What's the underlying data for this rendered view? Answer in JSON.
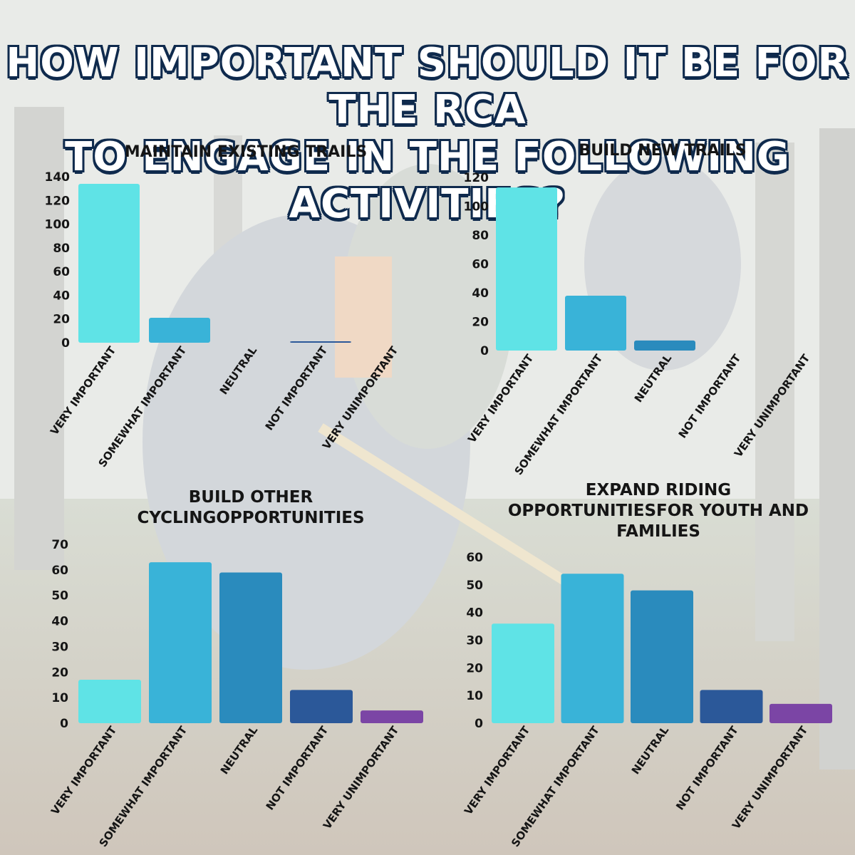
{
  "title_lines": [
    "HOW IMPORTANT SHOULD IT BE FOR THE RCA",
    "TO ENGAGE IN THE FOLLOWING ACTIVITIES?"
  ],
  "colors": {
    "very_important": "#5fe3e6",
    "somewhat_important": "#39b3d8",
    "neutral": "#2a8bbd",
    "not_important": "#2b5899",
    "very_unimportant": "#7b45a5"
  },
  "chart_data": [
    {
      "type": "bar",
      "title": [
        "MAINTAIN EXISTING TRAILS"
      ],
      "categories": [
        "VERY IMPORTANT",
        "SOMEWHAT IMPORTANT",
        "NEUTRAL",
        "NOT IMPORTANT",
        "VERY UNIMPORTANT"
      ],
      "values": [
        134,
        21,
        0,
        1,
        0
      ],
      "yticks": [
        0,
        20,
        40,
        60,
        80,
        100,
        120,
        140
      ],
      "ylim": [
        0,
        140
      ],
      "grid": false,
      "legend": "none"
    },
    {
      "type": "bar",
      "title": [
        "BUILD NEW TRAILS"
      ],
      "categories": [
        "VERY IMPORTANT",
        "SOMEWHAT IMPORTANT",
        "NEUTRAL",
        "NOT IMPORTANT",
        "VERY UNIMPORTANT"
      ],
      "values": [
        113,
        38,
        7,
        0,
        0
      ],
      "yticks": [
        0,
        20,
        40,
        60,
        80,
        100,
        120
      ],
      "ylim": [
        0,
        120
      ],
      "grid": false,
      "legend": "none"
    },
    {
      "type": "bar",
      "title": [
        "BUILD OTHER",
        "CYCLINGOPPORTUNITIES"
      ],
      "categories": [
        "VERY IMPORTANT",
        "SOMEWHAT IMPORTANT",
        "NEUTRAL",
        "NOT IMPORTANT",
        "VERY UNIMPORTANT"
      ],
      "values": [
        17,
        63,
        59,
        13,
        5
      ],
      "yticks": [
        0,
        10,
        20,
        30,
        40,
        50,
        60,
        70
      ],
      "ylim": [
        0,
        70
      ],
      "grid": false,
      "legend": "none"
    },
    {
      "type": "bar",
      "title": [
        "EXPAND RIDING",
        "OPPORTUNITIESFOR YOUTH AND",
        "FAMILIES"
      ],
      "categories": [
        "VERY IMPORTANT",
        "SOMEWHAT IMPORTANT",
        "NEUTRAL",
        "NOT IMPORTANT",
        "VERY UNIMPORTANT"
      ],
      "values": [
        36,
        54,
        48,
        12,
        7
      ],
      "yticks": [
        0,
        10,
        20,
        30,
        40,
        50,
        60
      ],
      "ylim": [
        0,
        60
      ],
      "grid": false,
      "legend": "none"
    }
  ]
}
